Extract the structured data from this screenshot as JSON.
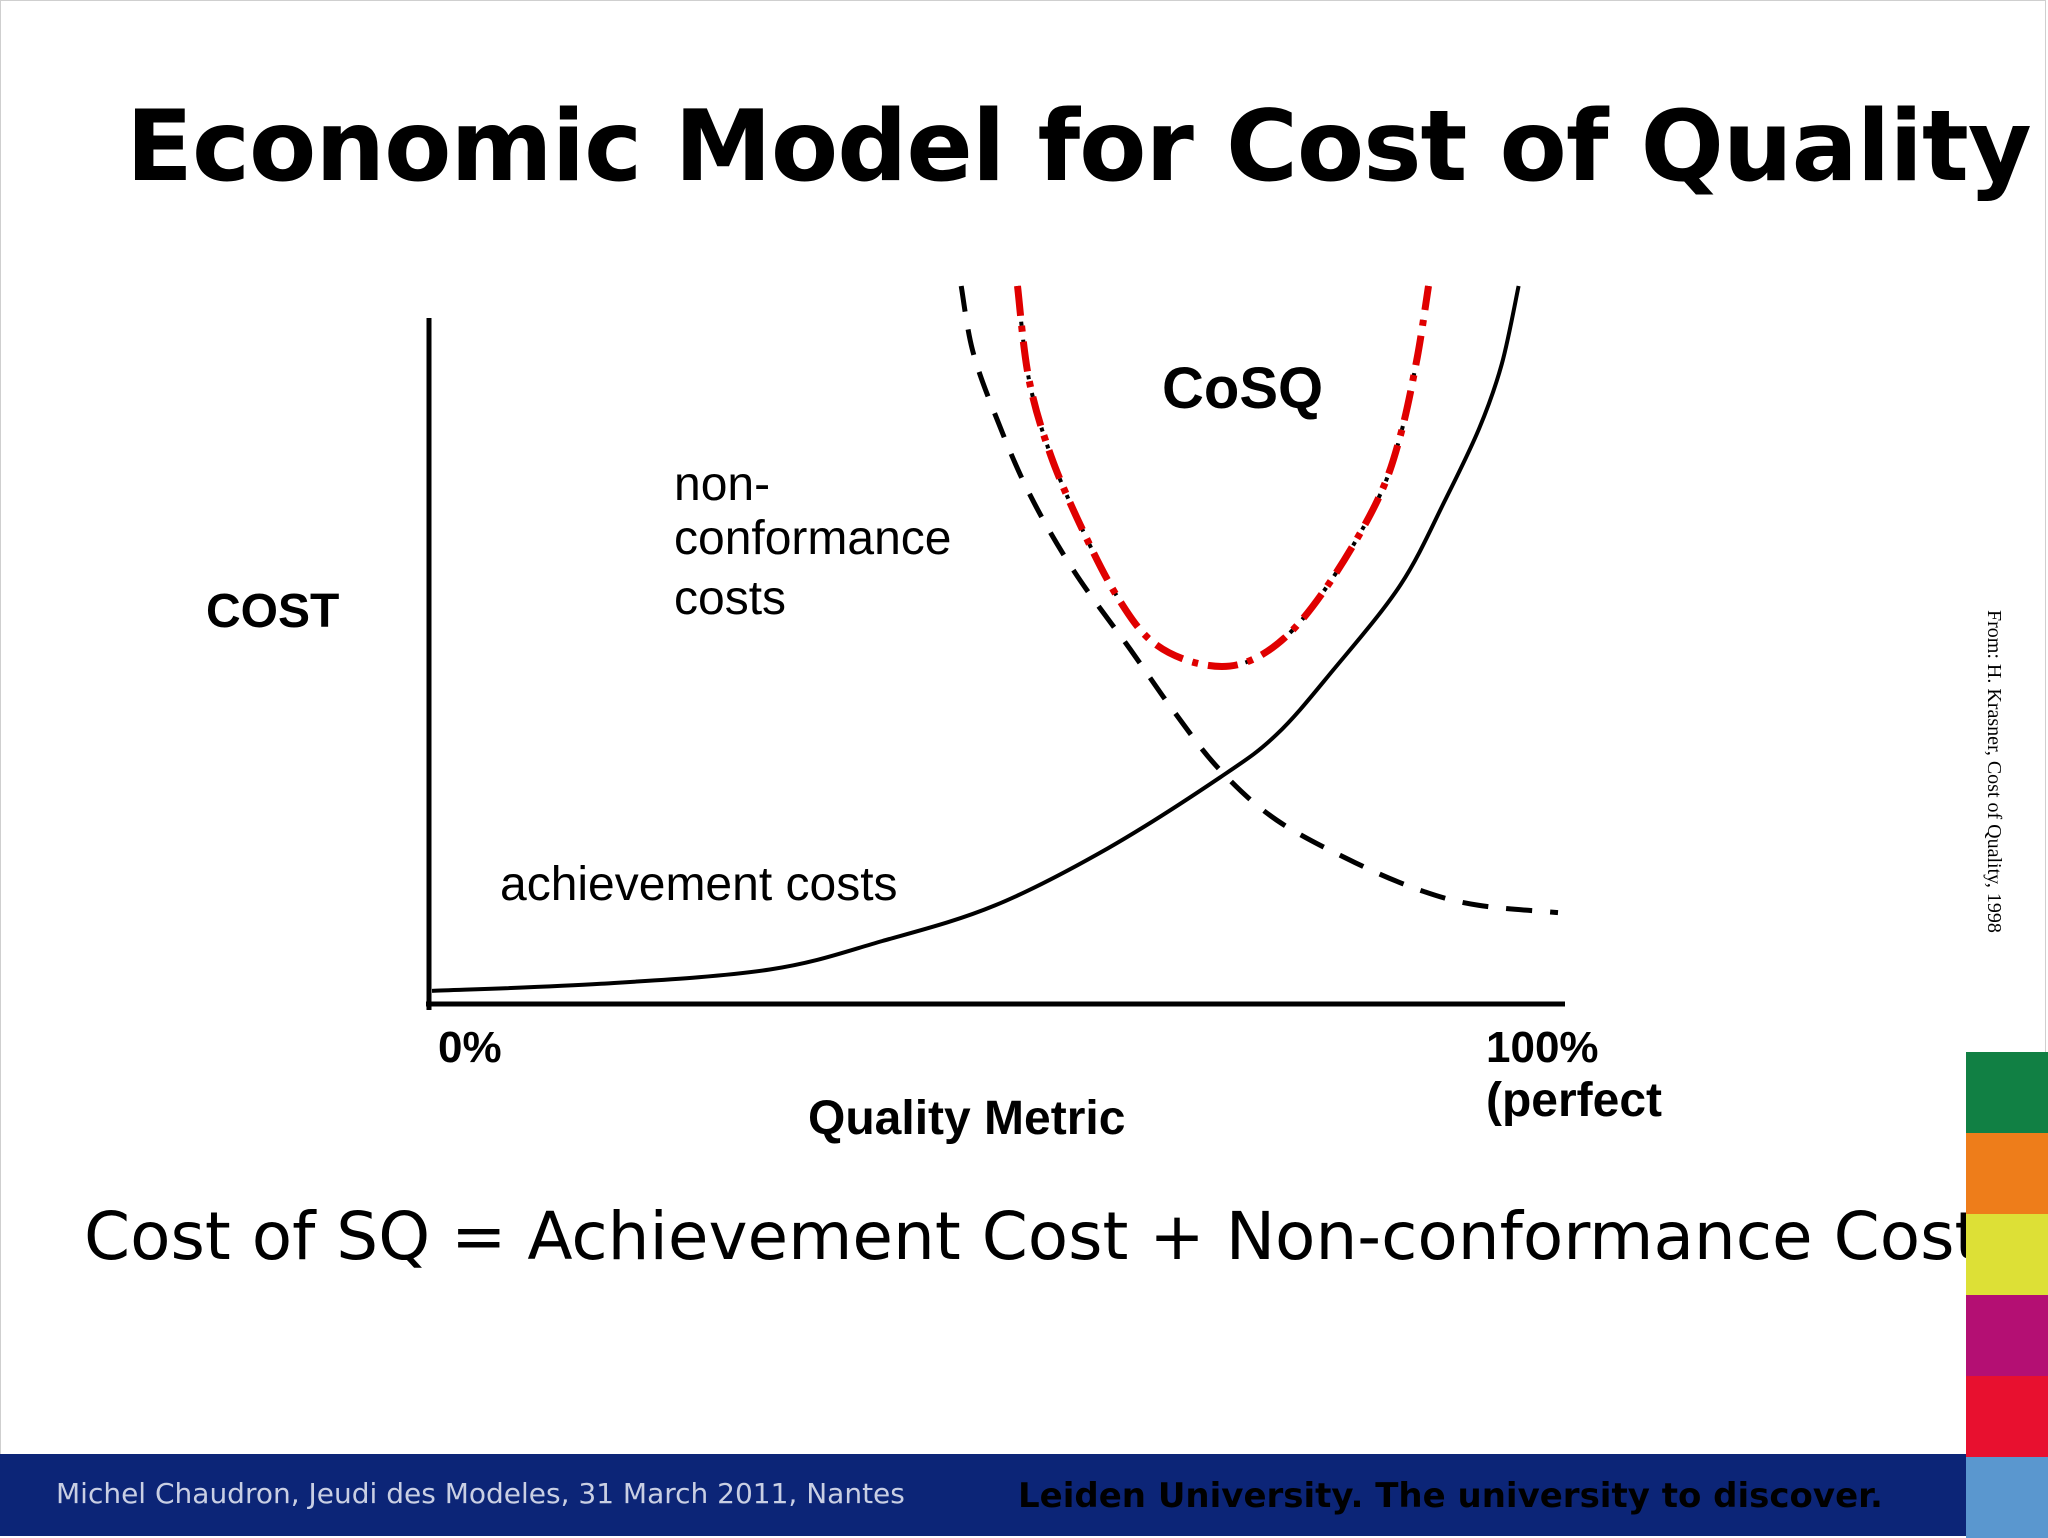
{
  "slide": {
    "title": "Economic Model for Cost of Quality",
    "source_note": "From: H. Krasner, Cost of Quality, 1998",
    "formula": "Cost of SQ = Achievement Cost + Non-conformance Cost"
  },
  "chart_data": {
    "type": "line",
    "ylabel": "COST",
    "xlabel": "Quality Metric",
    "x_tick_start": "0%",
    "x_tick_end_line1": "100%",
    "x_tick_end_line2": "(perfect",
    "annotation_cosq": "CoSQ",
    "annotation_nonconf": [
      "non-",
      "conformance",
      "costs"
    ],
    "annotation_achievement": "achievement costs",
    "x_range": [
      0,
      100
    ],
    "y_range": [
      0,
      100
    ],
    "series": [
      {
        "key": "achievement",
        "style": "solid",
        "color": "#000000",
        "points": [
          [
            0,
            1
          ],
          [
            15,
            2
          ],
          [
            30,
            4
          ],
          [
            40,
            8
          ],
          [
            50,
            13
          ],
          [
            60,
            21
          ],
          [
            70,
            31
          ],
          [
            75,
            37
          ],
          [
            80,
            46
          ],
          [
            86,
            58
          ],
          [
            90,
            70
          ],
          [
            93,
            80
          ],
          [
            95,
            89
          ],
          [
            96.5,
            100
          ]
        ]
      },
      {
        "key": "non-conformance",
        "style": "dashed",
        "color": "#000000",
        "points": [
          [
            47,
            100
          ],
          [
            48,
            91
          ],
          [
            50,
            82
          ],
          [
            53,
            71
          ],
          [
            57,
            60
          ],
          [
            62,
            49
          ],
          [
            66,
            40
          ],
          [
            70,
            32
          ],
          [
            75,
            25
          ],
          [
            82,
            19
          ],
          [
            88,
            15
          ],
          [
            93,
            13
          ],
          [
            100,
            12
          ]
        ]
      },
      {
        "key": "cosq",
        "style": "dash-dot",
        "color": "#e00000",
        "points": [
          [
            52,
            100
          ],
          [
            53,
            87
          ],
          [
            55,
            76
          ],
          [
            58,
            65
          ],
          [
            61,
            56
          ],
          [
            64,
            50
          ],
          [
            68,
            47
          ],
          [
            72,
            47
          ],
          [
            76,
            51
          ],
          [
            80,
            59
          ],
          [
            84,
            70
          ],
          [
            86,
            79
          ],
          [
            87.5,
            90
          ],
          [
            88.5,
            100
          ]
        ]
      }
    ],
    "colors": {
      "cosq": "#e00000",
      "axes": "#000000"
    }
  },
  "branding": {
    "footer_left": "Michel Chaudron, Jeudi des Modeles, 31 March 2011, Nantes",
    "footer_right": "Leiden University. The university to discover.",
    "footer_bg": "#0c2577",
    "strip_colors": [
      "#118044",
      "#ee7d1a",
      "#dde036",
      "#b40f73",
      "#e8102f",
      "#5a97cf"
    ]
  }
}
